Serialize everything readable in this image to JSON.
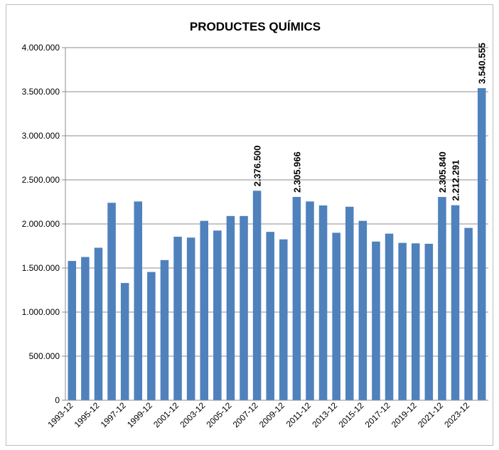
{
  "chart_data": {
    "type": "bar",
    "title": "PRODUCTES QUÍMICS",
    "xlabel": "",
    "ylabel": "",
    "ylim": [
      0,
      4000000
    ],
    "yticks": [
      0,
      500000,
      1000000,
      1500000,
      2000000,
      2500000,
      3000000,
      3500000,
      4000000
    ],
    "ytick_labels": [
      "0",
      "500.000",
      "1.000.000",
      "1.500.000",
      "2.000.000",
      "2.500.000",
      "3.000.000",
      "3.500.000",
      "4.000.000"
    ],
    "grid": true,
    "legend": "none",
    "bar_color": "#4f81bd",
    "categories": [
      "1993-12",
      "1994-12",
      "1995-12",
      "1996-12",
      "1997-12",
      "1998-12",
      "1999-12",
      "2000-12",
      "2001-12",
      "2002-12",
      "2003-12",
      "2004-12",
      "2005-12",
      "2006-12",
      "2007-12",
      "2008-12",
      "2009-12",
      "2010-12",
      "2011-12",
      "2012-12",
      "2013-12",
      "2014-12",
      "2015-12",
      "2016-12",
      "2017-12",
      "2018-12",
      "2019-12",
      "2020-12",
      "2021-12",
      "2022-12",
      "2023-12",
      "2024-12"
    ],
    "visible_category_labels": [
      "1993-12",
      "1995-12",
      "1997-12",
      "1999-12",
      "2001-12",
      "2003-12",
      "2005-12",
      "2007-12",
      "2009-12",
      "2011-12",
      "2013-12",
      "2015-12",
      "2017-12",
      "2019-12",
      "2021-12",
      "2023-12"
    ],
    "values": [
      1580000,
      1625000,
      1730000,
      2240000,
      1330000,
      2255000,
      1455000,
      1590000,
      1855000,
      1845000,
      2035000,
      1925000,
      2090000,
      2090000,
      2376500,
      1910000,
      1825000,
      2305966,
      2255000,
      2210000,
      1900000,
      2195000,
      2035000,
      1800000,
      1890000,
      1785000,
      1780000,
      1775000,
      2305840,
      2212291,
      1955000,
      3540555
    ],
    "data_labels": [
      {
        "index": 14,
        "text": "2.376.500"
      },
      {
        "index": 17,
        "text": "2.305.966"
      },
      {
        "index": 28,
        "text": "2.305.840"
      },
      {
        "index": 29,
        "text": "2.212.291"
      },
      {
        "index": 31,
        "text": "3.540.555"
      }
    ]
  }
}
